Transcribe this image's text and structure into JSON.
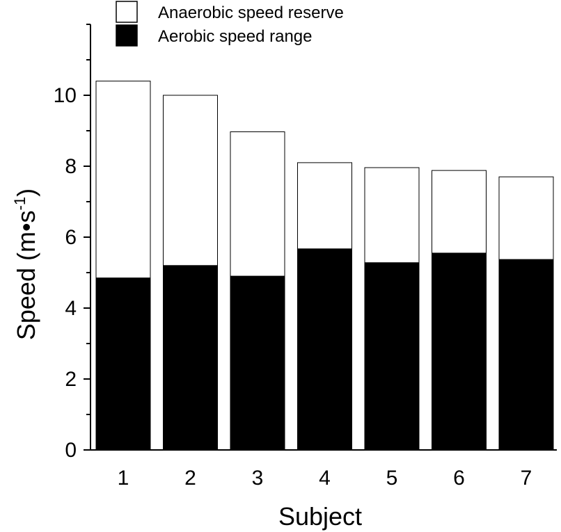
{
  "chart_data": {
    "type": "bar",
    "stacked": true,
    "categories": [
      "1",
      "2",
      "3",
      "4",
      "5",
      "6",
      "7"
    ],
    "series": [
      {
        "name": "Aerobic speed range",
        "color": "#000000",
        "values": [
          4.85,
          5.2,
          4.9,
          5.67,
          5.28,
          5.55,
          5.37
        ]
      },
      {
        "name": "Anaerobic speed reserve",
        "color": "#ffffff",
        "values": [
          5.55,
          4.8,
          4.07,
          2.43,
          2.68,
          2.33,
          2.33
        ]
      }
    ],
    "totals": [
      10.4,
      10.0,
      8.97,
      8.1,
      7.96,
      7.88,
      7.7
    ],
    "xlabel": "Subject",
    "ylabel": "Speed (m•s",
    "ylabel_superscript": "-1",
    "ylabel_suffix": ")",
    "ylim": [
      0,
      12
    ],
    "yticks": [
      0,
      2,
      4,
      6,
      8,
      10
    ],
    "grid": false,
    "legend_position": "top-left"
  }
}
